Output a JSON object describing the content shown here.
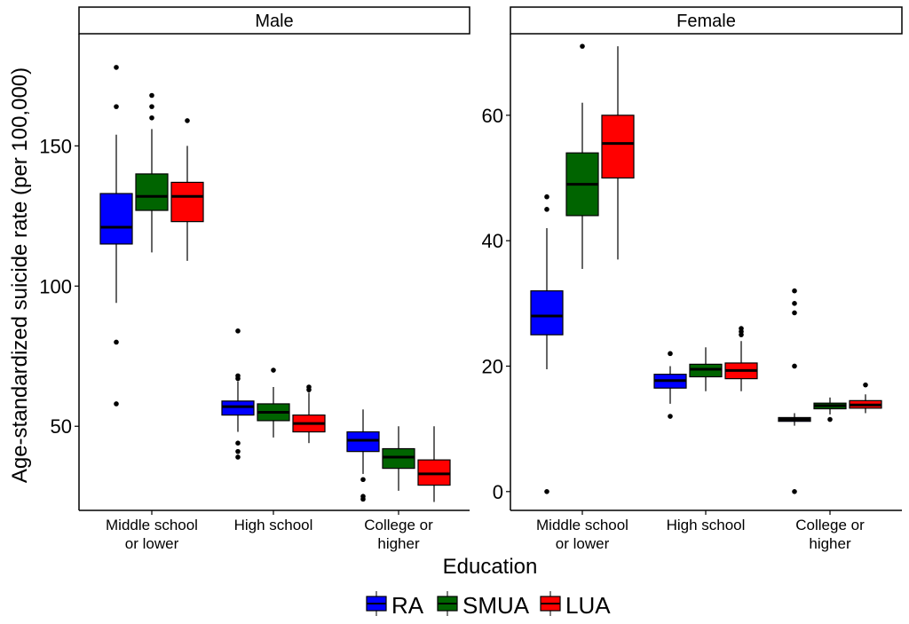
{
  "chart_data": {
    "type": "boxplot",
    "xlabel": "Education",
    "ylabel": "Age-standardized suicide rate (per 100,000)",
    "categories": [
      "Middle school\nor lower",
      "High school",
      "College or\nhigher"
    ],
    "legend": {
      "placement": "bottom",
      "entries": [
        {
          "name": "RA",
          "color": "#0000ff"
        },
        {
          "name": "SMUA",
          "color": "#006400"
        },
        {
          "name": "LUA",
          "color": "#ff0000"
        }
      ]
    },
    "grid": false,
    "panels": [
      {
        "title": "Male",
        "ylim": [
          20,
          190
        ],
        "yticks": [
          50,
          100,
          150
        ],
        "groups": [
          {
            "category": "Middle school\nor lower",
            "boxes": [
              {
                "series": "RA",
                "q1": 115,
                "median": 121,
                "q3": 133,
                "whisker_low": 94,
                "whisker_high": 154,
                "outliers": [
                  178,
                  164,
                  80,
                  58
                ]
              },
              {
                "series": "SMUA",
                "q1": 127,
                "median": 132,
                "q3": 140,
                "whisker_low": 112,
                "whisker_high": 156,
                "outliers": [
                  168,
                  164,
                  160
                ]
              },
              {
                "series": "LUA",
                "q1": 123,
                "median": 132,
                "q3": 137,
                "whisker_low": 109,
                "whisker_high": 150,
                "outliers": [
                  159
                ]
              }
            ]
          },
          {
            "category": "High school",
            "boxes": [
              {
                "series": "RA",
                "q1": 54,
                "median": 57,
                "q3": 59,
                "whisker_low": 48,
                "whisker_high": 66,
                "outliers": [
                  84,
                  68,
                  67,
                  44,
                  41,
                  39
                ]
              },
              {
                "series": "SMUA",
                "q1": 52,
                "median": 55,
                "q3": 58,
                "whisker_low": 46,
                "whisker_high": 64,
                "outliers": [
                  70
                ]
              },
              {
                "series": "LUA",
                "q1": 48,
                "median": 51,
                "q3": 54,
                "whisker_low": 44,
                "whisker_high": 62,
                "outliers": [
                  64,
                  63
                ]
              }
            ]
          },
          {
            "category": "College or\nhigher",
            "boxes": [
              {
                "series": "RA",
                "q1": 41,
                "median": 45,
                "q3": 48,
                "whisker_low": 33,
                "whisker_high": 56,
                "outliers": [
                  31,
                  25,
                  24
                ]
              },
              {
                "series": "SMUA",
                "q1": 35,
                "median": 39,
                "q3": 42,
                "whisker_low": 27,
                "whisker_high": 50,
                "outliers": []
              },
              {
                "series": "LUA",
                "q1": 29,
                "median": 33,
                "q3": 38,
                "whisker_low": 23,
                "whisker_high": 50,
                "outliers": []
              }
            ]
          }
        ]
      },
      {
        "title": "Female",
        "ylim": [
          -3,
          73
        ],
        "yticks": [
          0,
          20,
          40,
          60
        ],
        "groups": [
          {
            "category": "Middle school\nor lower",
            "boxes": [
              {
                "series": "RA",
                "q1": 25,
                "median": 28,
                "q3": 32,
                "whisker_low": 19.5,
                "whisker_high": 42,
                "outliers": [
                  47,
                  45,
                  0
                ]
              },
              {
                "series": "SMUA",
                "q1": 44,
                "median": 49,
                "q3": 54,
                "whisker_low": 35.5,
                "whisker_high": 62,
                "outliers": [
                  71
                ]
              },
              {
                "series": "LUA",
                "q1": 50,
                "median": 55.5,
                "q3": 60,
                "whisker_low": 37,
                "whisker_high": 71,
                "outliers": []
              }
            ]
          },
          {
            "category": "High school",
            "boxes": [
              {
                "series": "RA",
                "q1": 16.5,
                "median": 17.7,
                "q3": 18.7,
                "whisker_low": 14,
                "whisker_high": 20,
                "outliers": [
                  22,
                  12
                ]
              },
              {
                "series": "SMUA",
                "q1": 18.3,
                "median": 19.5,
                "q3": 20.3,
                "whisker_low": 16,
                "whisker_high": 23,
                "outliers": []
              },
              {
                "series": "LUA",
                "q1": 18,
                "median": 19.3,
                "q3": 20.5,
                "whisker_low": 16,
                "whisker_high": 24,
                "outliers": [
                  26,
                  25.5,
                  25
                ]
              }
            ]
          },
          {
            "category": "College or\nhigher",
            "boxes": [
              {
                "series": "RA",
                "q1": 11.2,
                "median": 11.5,
                "q3": 11.8,
                "whisker_low": 10.5,
                "whisker_high": 12.5,
                "outliers": [
                  32,
                  30,
                  28.5,
                  20,
                  0
                ]
              },
              {
                "series": "SMUA",
                "q1": 13.2,
                "median": 13.7,
                "q3": 14.1,
                "whisker_low": 12.3,
                "whisker_high": 15,
                "outliers": [
                  11.5
                ]
              },
              {
                "series": "LUA",
                "q1": 13.3,
                "median": 13.8,
                "q3": 14.5,
                "whisker_low": 12.5,
                "whisker_high": 15.5,
                "outliers": [
                  17
                ]
              }
            ]
          }
        ]
      }
    ]
  }
}
